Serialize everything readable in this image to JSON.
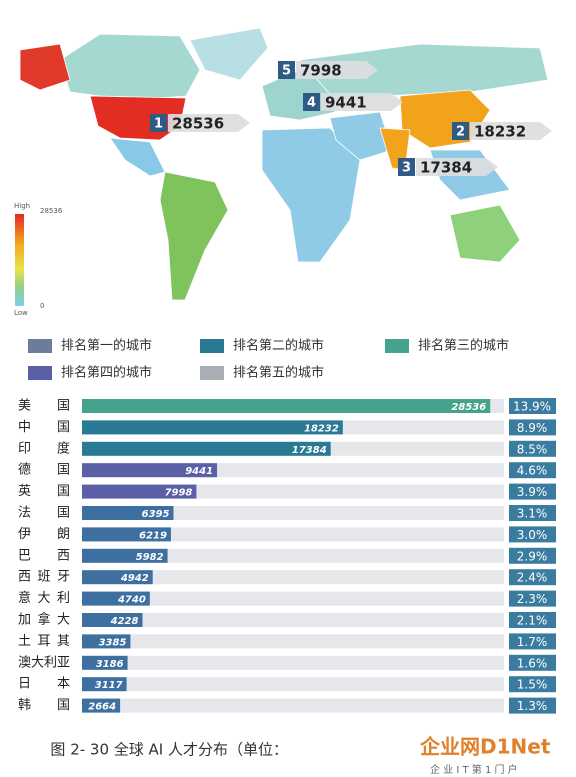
{
  "map": {
    "callouts": [
      {
        "rank": 1,
        "value": 28536
      },
      {
        "rank": 2,
        "value": 18232
      },
      {
        "rank": 3,
        "value": 17384
      },
      {
        "rank": 4,
        "value": 9441
      },
      {
        "rank": 5,
        "value": 7998
      }
    ],
    "scale": {
      "high": "High",
      "max": 28536,
      "min": 0,
      "low": "Low"
    }
  },
  "chart_data": {
    "type": "bar",
    "legend": [
      {
        "name": "排名第一的城市",
        "color": "#6d7c98"
      },
      {
        "name": "排名第二的城市",
        "color": "#2b7a95"
      },
      {
        "name": "排名第三的城市",
        "color": "#45a28c"
      },
      {
        "name": "排名第四的城市",
        "color": "#5a5fa6"
      },
      {
        "name": "排名第五的城市",
        "color": "#a9aeb4"
      }
    ],
    "categories": [
      "美国",
      "中国",
      "印度",
      "德国",
      "英国",
      "法国",
      "伊朗",
      "巴西",
      "西班牙",
      "意大利",
      "加拿大",
      "土耳其",
      "澳大利亚",
      "日本",
      "韩国"
    ],
    "values": [
      28536,
      18232,
      17384,
      9441,
      7998,
      6395,
      6219,
      5982,
      4942,
      4740,
      4228,
      3385,
      3186,
      3117,
      2664
    ],
    "colors": [
      "#45a28c",
      "#2b7a95",
      "#2b7a95",
      "#5a5fa6",
      "#5a5fa6",
      "#3d6fa0",
      "#3d6fa0",
      "#3d6fa0",
      "#3d6fa0",
      "#3d6fa0",
      "#3d6fa0",
      "#3d6fa0",
      "#3d6fa0",
      "#3d6fa0",
      "#3d6fa0"
    ],
    "share": {
      "values": [
        13.9,
        8.9,
        8.5,
        4.6,
        3.9,
        3.1,
        3.0,
        2.9,
        2.4,
        2.3,
        2.1,
        1.7,
        1.6,
        1.5,
        1.3
      ],
      "value_labels": [
        "13.9%",
        "8.9%",
        "8.5%",
        "4.6%",
        "3.9%",
        "3.1%",
        "3.0%",
        "2.9%",
        "2.4%",
        "2.3%",
        "2.1%",
        "1.7%",
        "1.6%",
        "1.5%",
        "1.3%"
      ],
      "color": "#3a7ca0"
    },
    "xlim": [
      0,
      29500
    ]
  },
  "caption": "图 2- 30 全球 AI 人才分布（单位：",
  "watermark": {
    "logo": "企业网D1Net",
    "tagline": "企 业 I T 第 1 门 户"
  }
}
